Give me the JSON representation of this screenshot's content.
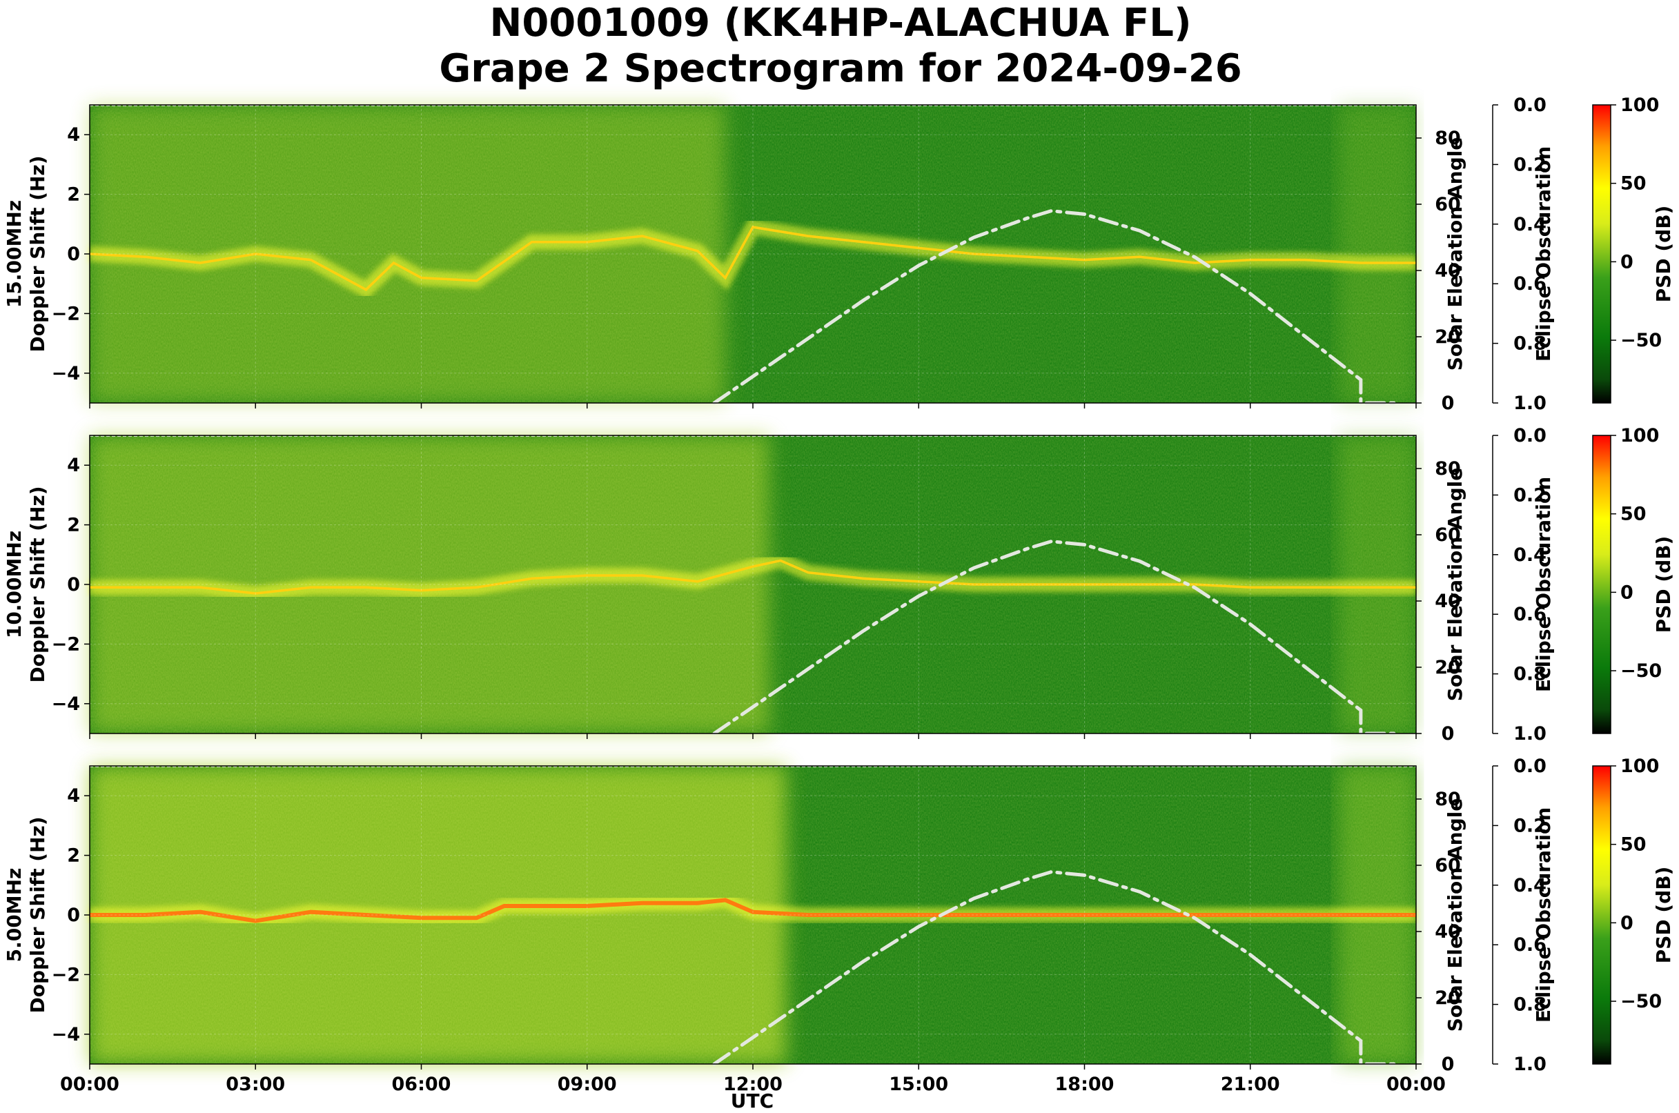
{
  "chart_data": {
    "type": "heatmap",
    "title_line1": "N0001009 (KK4HP-ALACHUA FL)",
    "title_line2": "Grape 2 Spectrogram for 2024-09-26",
    "xlabel": "UTC",
    "x_ticks": [
      "00:00",
      "03:00",
      "06:00",
      "09:00",
      "12:00",
      "15:00",
      "18:00",
      "21:00",
      "00:00"
    ],
    "xlim_hours": [
      0,
      24
    ],
    "y_ticks": [
      -4,
      -2,
      0,
      2,
      4
    ],
    "ylim": [
      -5,
      5
    ],
    "right_axis": {
      "label": "Solar Elevation Angle",
      "ticks": [
        0,
        20,
        40,
        60,
        80
      ],
      "ylim": [
        0,
        90
      ]
    },
    "eclipse_axis": {
      "label": "Eclipse Obscuration",
      "ticks": [
        "0.0",
        "0.2",
        "0.4",
        "0.6",
        "0.8",
        "1.0"
      ],
      "range": [
        0,
        1
      ]
    },
    "colorbar": {
      "label": "PSD (dB)",
      "ticks": [
        100,
        50,
        0,
        -50
      ],
      "range": [
        -90,
        100
      ],
      "colors": [
        "#000000",
        "#0a4a0a",
        "#0b7a0b",
        "#3aa01a",
        "#d8ec1a",
        "#ffff00",
        "#ffa000",
        "#ff0000"
      ]
    },
    "solar_elevation": {
      "hours": [
        11.3,
        12,
        13,
        14,
        15,
        16,
        17,
        17.4,
        18,
        19,
        20,
        21,
        22,
        23,
        23.0,
        23.6
      ],
      "degrees": [
        0,
        8,
        19.5,
        31,
        41.5,
        50,
        56,
        58,
        57,
        52,
        44,
        33,
        20,
        7,
        0,
        0
      ]
    },
    "panels": [
      {
        "ylabel_line1": "15.00MHz",
        "ylabel_line2": "Doppler Shift (Hz)",
        "dominant_doppler": {
          "hours": [
            0,
            1,
            2,
            3,
            4,
            5,
            5.5,
            6,
            7,
            8,
            9,
            10,
            11,
            11.5,
            12,
            13,
            14,
            15,
            16,
            17,
            18,
            19,
            20,
            21,
            22,
            23,
            24
          ],
          "hz": [
            0,
            -0.1,
            -0.3,
            0,
            -0.2,
            -1.2,
            -0.3,
            -0.8,
            -0.9,
            0.4,
            0.4,
            0.6,
            0.1,
            -0.8,
            0.9,
            0.6,
            0.4,
            0.2,
            0.0,
            -0.1,
            -0.2,
            -0.1,
            -0.3,
            -0.2,
            -0.2,
            -0.3,
            -0.3
          ]
        }
      },
      {
        "ylabel_line1": "10.00MHz",
        "ylabel_line2": "Doppler Shift (Hz)",
        "dominant_doppler": {
          "hours": [
            0,
            1,
            2,
            3,
            4,
            5,
            6,
            7,
            8,
            9,
            10,
            11,
            12,
            12.5,
            13,
            14,
            15,
            16,
            17,
            18,
            19,
            20,
            21,
            22,
            23,
            24
          ],
          "hz": [
            -0.1,
            -0.1,
            -0.1,
            -0.3,
            -0.1,
            -0.1,
            -0.2,
            -0.1,
            0.2,
            0.3,
            0.3,
            0.1,
            0.6,
            0.8,
            0.4,
            0.2,
            0.1,
            0.0,
            0.0,
            0.0,
            0.0,
            0.0,
            -0.1,
            -0.1,
            -0.1,
            -0.1
          ]
        }
      },
      {
        "ylabel_line1": "5.00MHz",
        "ylabel_line2": "Doppler Shift (Hz)",
        "dominant_doppler": {
          "hours": [
            0,
            1,
            2,
            3,
            4,
            5,
            6,
            7,
            7.5,
            8,
            9,
            10,
            11,
            11.5,
            12,
            13,
            14,
            15,
            16,
            17,
            18,
            19,
            20,
            21,
            22,
            23,
            24
          ],
          "hz": [
            0,
            0,
            0.1,
            -0.2,
            0.1,
            0,
            -0.1,
            -0.1,
            0.3,
            0.3,
            0.3,
            0.4,
            0.4,
            0.5,
            0.1,
            0,
            0,
            0,
            0,
            0,
            0,
            0,
            0,
            0,
            0,
            0,
            0
          ]
        }
      }
    ]
  }
}
